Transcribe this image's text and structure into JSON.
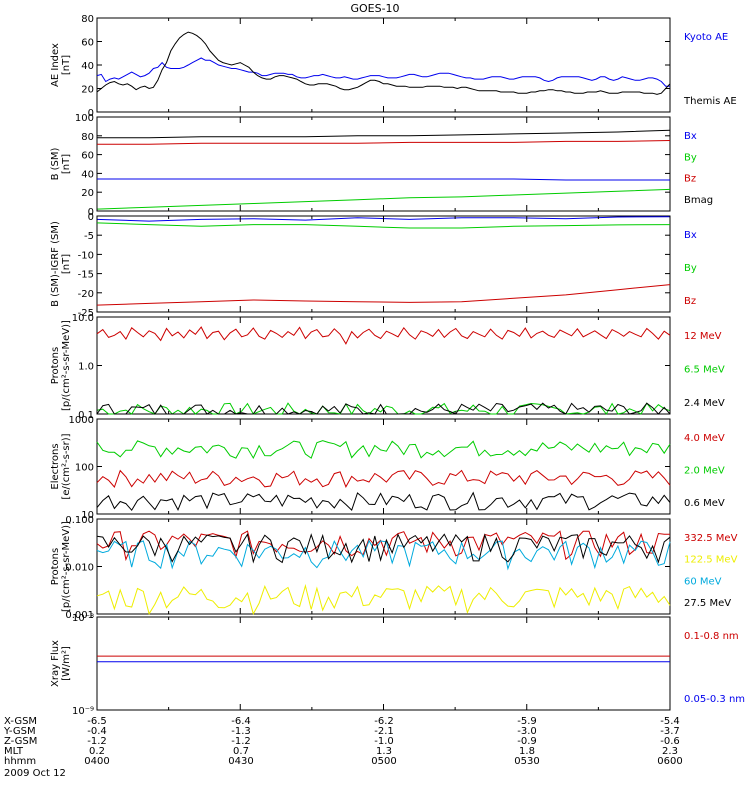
{
  "title": "GOES-10",
  "colors": {
    "black": "#000000",
    "blue": "#0000ee",
    "green": "#00cc00",
    "red": "#cc0000",
    "yellow": "#eeee00",
    "cyan": "#00aadd"
  },
  "chart_data": [
    {
      "type": "line",
      "ylabel": [
        "AE Index",
        "[nT]"
      ],
      "ylim": [
        0,
        80
      ],
      "ticks": [
        "0",
        "20",
        "40",
        "60",
        "80"
      ],
      "series": [
        {
          "name": "Kyoto AE",
          "color": "blue",
          "values": [
            31,
            32,
            26,
            28,
            29,
            28,
            30,
            32,
            34,
            32,
            30,
            31,
            33,
            37,
            38,
            42,
            38,
            37,
            37,
            37,
            38,
            40,
            42,
            44,
            46,
            44,
            44,
            42,
            40,
            39,
            38,
            37,
            37,
            36,
            35,
            34,
            34,
            33,
            31,
            31,
            32,
            33,
            33,
            33,
            32,
            32,
            30,
            29,
            29,
            30,
            31,
            31,
            32,
            31,
            30,
            29,
            29,
            30,
            29,
            28,
            28,
            29,
            30,
            31,
            31,
            31,
            30,
            29,
            29,
            29,
            30,
            31,
            32,
            32,
            31,
            30,
            30,
            31,
            32,
            33,
            33,
            33,
            32,
            31,
            30,
            29,
            29,
            28,
            28,
            28,
            29,
            30,
            30,
            30,
            29,
            28,
            28,
            29,
            30,
            30,
            30,
            30,
            29,
            27,
            26,
            27,
            29,
            30,
            30,
            30,
            30,
            30,
            29,
            28,
            27,
            28,
            30,
            30,
            28,
            27,
            28,
            30,
            29,
            28,
            27,
            27,
            28,
            29,
            29,
            28,
            26,
            22,
            22
          ]
        },
        {
          "name": "Themis AE",
          "color": "black",
          "values": [
            17,
            20,
            23,
            25,
            26,
            24,
            23,
            24,
            22,
            19,
            21,
            22,
            20,
            21,
            27,
            36,
            42,
            52,
            58,
            63,
            66,
            68,
            67,
            65,
            62,
            58,
            52,
            48,
            44,
            42,
            41,
            40,
            41,
            42,
            40,
            38,
            34,
            31,
            29,
            28,
            28,
            30,
            31,
            31,
            30,
            29,
            28,
            26,
            24,
            23,
            23,
            24,
            24,
            24,
            23,
            22,
            20,
            19,
            19,
            20,
            21,
            23,
            25,
            27,
            27,
            26,
            24,
            24,
            23,
            22,
            22,
            22,
            21,
            21,
            21,
            21,
            22,
            22,
            22,
            22,
            21,
            21,
            21,
            20,
            21,
            21,
            20,
            19,
            18,
            18,
            18,
            18,
            18,
            17,
            17,
            17,
            17,
            16,
            16,
            16,
            17,
            17,
            18,
            18,
            19,
            19,
            18,
            18,
            17,
            17,
            16,
            16,
            16,
            17,
            17,
            17,
            18,
            17,
            16,
            16,
            16,
            17,
            17,
            17,
            17,
            17,
            16,
            16,
            16,
            15,
            16,
            20,
            24
          ]
        }
      ]
    },
    {
      "type": "line",
      "ylabel": [
        "B (SM)",
        "[nT]"
      ],
      "ylim": [
        0,
        100
      ],
      "ticks": [
        "0",
        "20",
        "40",
        "60",
        "80",
        "100"
      ],
      "series": [
        {
          "name": "Bx",
          "color": "blue",
          "values": [
            34,
            34,
            34,
            34,
            34,
            34,
            34,
            34,
            34,
            33,
            33,
            33
          ]
        },
        {
          "name": "By",
          "color": "green",
          "values": [
            2,
            4,
            6,
            8,
            10,
            12,
            14,
            15,
            17,
            19,
            21,
            23
          ]
        },
        {
          "name": "Bz",
          "color": "red",
          "values": [
            71,
            71,
            72,
            72,
            72,
            72,
            73,
            73,
            73,
            74,
            74,
            75
          ]
        },
        {
          "name": "Bmag",
          "color": "black",
          "values": [
            78,
            78,
            79,
            79,
            79,
            80,
            80,
            81,
            82,
            83,
            84,
            86
          ]
        }
      ]
    },
    {
      "type": "line",
      "ylabel": [
        "B (SM)-IGRF (SM)",
        "[nT]"
      ],
      "ylim": [
        -28,
        0
      ],
      "ticks": [
        "-25",
        "-20",
        "-15",
        "-10",
        "-5",
        "0"
      ],
      "series": [
        {
          "name": "Bx",
          "color": "blue",
          "values": [
            -1,
            -1.5,
            -1,
            -0.8,
            -1.2,
            -0.5,
            -1,
            -0.5,
            -0.5,
            -0.8,
            -0.3,
            -0.2
          ]
        },
        {
          "name": "By",
          "color": "green",
          "values": [
            -2,
            -2.5,
            -3,
            -2.5,
            -2.5,
            -3,
            -3.5,
            -3.5,
            -3,
            -2.8,
            -2.6,
            -2.5
          ]
        },
        {
          "name": "Bz",
          "color": "red",
          "values": [
            -26,
            -25.5,
            -25,
            -24.5,
            -24.8,
            -25,
            -25.2,
            -25,
            -24,
            -23,
            -21.5,
            -20
          ]
        }
      ]
    },
    {
      "type": "line",
      "ylabel": [
        "Protons",
        "[p/(cm²-s-sr-MeV)]"
      ],
      "scale": "log",
      "ylim": [
        0.1,
        10
      ],
      "ticks": [
        "0.1",
        "1.0",
        "10.0"
      ],
      "series": [
        {
          "name": "12 MeV",
          "color": "red",
          "values": [
            4.5,
            5.5,
            3.8,
            4.2,
            5.0,
            3.5,
            6.0,
            4.8,
            3.9,
            5.2,
            4.6,
            3.3,
            5.8,
            4.1,
            4.9,
            3.7,
            5.4,
            4.4,
            6.2,
            3.6,
            4.8,
            5.1,
            3.4,
            4.7,
            5.6,
            3.9,
            4.3,
            5.9,
            4.0,
            3.5,
            5.3,
            4.6,
            3.8,
            5.0,
            4.2,
            6.1,
            3.6,
            4.9,
            5.5,
            3.9,
            4.1,
            5.7,
            4.4,
            2.8,
            5.0,
            3.7,
            4.8,
            5.6,
            4.2,
            3.6,
            5.1,
            4.5,
            3.9,
            6.0,
            4.3,
            3.5,
            5.2,
            4.7,
            4.0,
            5.5,
            3.8,
            4.9,
            5.8,
            4.1,
            3.6,
            5.0,
            4.4,
            3.9,
            5.6,
            4.2,
            3.5,
            5.3,
            4.8,
            4.0,
            5.9,
            3.7,
            4.6,
            5.1,
            4.2,
            3.8,
            5.4,
            4.7,
            4.1,
            5.7,
            3.9,
            4.5,
            5.2,
            4.3,
            3.6,
            5.5,
            4.8,
            4.0,
            5.0,
            4.4,
            3.9,
            5.8,
            4.6,
            3.5,
            5.1,
            4.2
          ]
        },
        {
          "name": "6.5 MeV",
          "color": "green",
          "values": []
        },
        {
          "name": "2.4 MeV",
          "color": "black",
          "values": []
        }
      ]
    },
    {
      "type": "line",
      "ylabel": [
        "Electrons",
        "[e/(cm²-s-sr)]"
      ],
      "scale": "log",
      "ylim": [
        10,
        1000
      ],
      "ticks": [
        "10",
        "100",
        "1000"
      ],
      "series": [
        {
          "name": "4.0 MeV",
          "color": "red",
          "values": []
        },
        {
          "name": "2.0 MeV",
          "color": "green",
          "values": []
        },
        {
          "name": "0.6 MeV",
          "color": "black",
          "values": []
        }
      ]
    },
    {
      "type": "line",
      "ylabel": [
        "Protons",
        "[p/(cm²-s-sr-MeV)]"
      ],
      "scale": "log",
      "ylim": [
        0.001,
        0.1
      ],
      "ticks": [
        "0.001",
        "0.010",
        "0.100"
      ],
      "series": [
        {
          "name": "332.5 MeV",
          "color": "red",
          "values": []
        },
        {
          "name": "122.5 MeV",
          "color": "yellow",
          "values": []
        },
        {
          "name": "60 MeV",
          "color": "cyan",
          "values": []
        },
        {
          "name": "27.5 MeV",
          "color": "black",
          "values": []
        }
      ]
    },
    {
      "type": "line",
      "ylabel": [
        "Xray Flux",
        "[W/m²]"
      ],
      "scale": "log",
      "ylim": [
        1e-09,
        1e-08
      ],
      "ticks": [
        "10⁻⁹",
        "10⁻⁸"
      ],
      "series": [
        {
          "name": "0.1-0.8 nm",
          "color": "red",
          "values": [
            3.8e-09,
            3.8e-09,
            3.8e-09,
            3.8e-09,
            3.8e-09,
            3.8e-09,
            3.8e-09,
            3.8e-09,
            3.8e-09,
            3.8e-09,
            3.8e-09,
            3.8e-09,
            3.8e-09,
            3.8e-09,
            3.8e-09,
            3.8e-09,
            3.8e-09,
            3.8e-09,
            3.8e-09,
            3.8e-09,
            3.8e-09,
            3.8e-09,
            3.8e-09,
            3.8e-09,
            3.8e-09,
            3.8e-09,
            3.8e-09,
            3.8e-09,
            3.8e-09,
            3.8e-09,
            3.8e-09,
            3.8e-09,
            3.8e-09,
            3.8e-09,
            3.8e-09,
            3.8e-09,
            3.8e-09,
            3.8e-09,
            3.8e-09,
            3.8e-09,
            3.8e-09,
            3.8e-09,
            3.8e-09,
            3.8e-09,
            3.8e-09,
            3.8e-09,
            3.8e-09,
            3.8e-09,
            3.8e-09,
            3.8e-09,
            3.8e-09,
            3.8e-09,
            3.8e-09,
            3.8e-09,
            3.8e-09,
            3.8e-09,
            3.8e-09,
            3.8e-09,
            3.8e-09,
            3.8e-09,
            3.8e-09,
            3.8e-09,
            3.8e-09,
            3.8e-09,
            3.8e-09,
            3.8e-09,
            3.8e-09,
            3.8e-09,
            3.8e-09,
            3.8e-09,
            3.8e-09,
            3.8e-09,
            3.8e-09,
            3.8e-09,
            3.8e-09,
            3.8e-09,
            3.8e-09,
            3.8e-09,
            3.8e-09,
            3.8e-09,
            3.8e-09,
            3.8e-09,
            3.8e-09,
            3.8e-09,
            3.8e-09,
            3.8e-09,
            3.8e-09,
            3.8e-09,
            3.8e-09,
            3.8e-09,
            3.8e-09,
            3.8e-09,
            3.8e-09,
            3.8e-09,
            3.8e-09,
            3.8e-09,
            3.8e-09,
            3.8e-09,
            3.8e-09,
            3.8e-09
          ]
        },
        {
          "name": "0.05-0.3 nm",
          "color": "blue",
          "values": [
            3.3e-09,
            3.3e-09
          ]
        }
      ]
    }
  ],
  "bottom_axis": {
    "rows": [
      {
        "label": "X-GSM",
        "values": [
          "-6.5",
          "-6.4",
          "-6.2",
          "-5.9",
          "-5.4"
        ]
      },
      {
        "label": "Y-GSM",
        "values": [
          "-0.4",
          "-1.3",
          "-2.1",
          "-3.0",
          "-3.7"
        ]
      },
      {
        "label": "Z-GSM",
        "values": [
          "-1.2",
          "-1.2",
          "-1.0",
          "-0.9",
          "-0.6"
        ]
      },
      {
        "label": "MLT",
        "values": [
          "0.2",
          "0.7",
          "1.3",
          "1.8",
          "2.3"
        ]
      },
      {
        "label": "hhmm",
        "values": [
          "0400",
          "0430",
          "0500",
          "0530",
          "0600"
        ]
      }
    ],
    "date": "2009 Oct 12"
  }
}
